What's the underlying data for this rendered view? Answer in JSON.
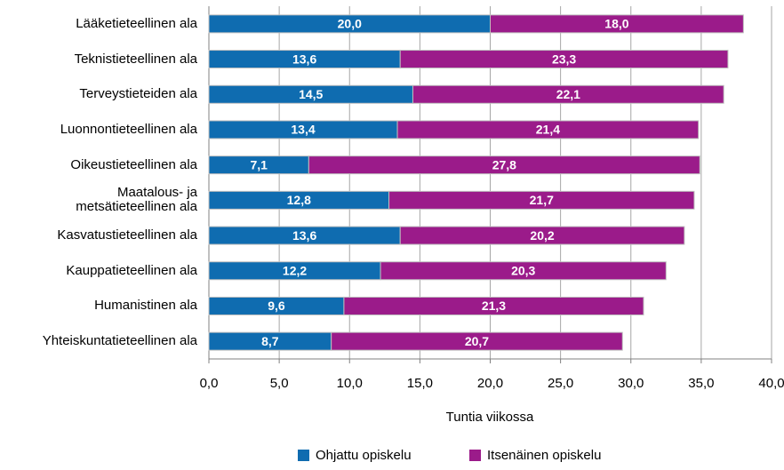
{
  "chart_data": {
    "type": "stacked_bar_horizontal",
    "categories": [
      "Lääketieteellinen ala",
      "Teknistieteellinen ala",
      "Terveystieteiden ala",
      "Luonnontieteellinen ala",
      "Oikeustieteellinen ala",
      "Maatalous- ja\nmetsätieteellinen ala",
      "Kasvatustieteellinen ala",
      "Kauppatieteellinen ala",
      "Humanistinen ala",
      "Yhteiskuntatieteellinen ala"
    ],
    "series": [
      {
        "name": "Ohjattu opiskelu",
        "color": "#0f6cb0",
        "values": [
          20.0,
          13.6,
          14.5,
          13.4,
          7.1,
          12.8,
          13.6,
          12.2,
          9.6,
          8.7
        ],
        "value_labels": [
          "20,0",
          "13,6",
          "14,5",
          "13,4",
          "7,1",
          "12,8",
          "13,6",
          "12,2",
          "9,6",
          "8,7"
        ]
      },
      {
        "name": "Itsenäinen opiskelu",
        "color": "#9b1b8a",
        "values": [
          18.0,
          23.3,
          22.1,
          21.4,
          27.8,
          21.7,
          20.2,
          20.3,
          21.3,
          20.7
        ],
        "value_labels": [
          "18,0",
          "23,3",
          "22,1",
          "21,4",
          "27,8",
          "21,7",
          "20,2",
          "20,3",
          "21,3",
          "20,7"
        ]
      }
    ],
    "xlabel": "Tuntia viikossa",
    "xlim": [
      0,
      40
    ],
    "xticks": [
      {
        "value": 0,
        "label": "0,0"
      },
      {
        "value": 5,
        "label": "5,0"
      },
      {
        "value": 10,
        "label": "10,0"
      },
      {
        "value": 15,
        "label": "15,0"
      },
      {
        "value": 20,
        "label": "20,0"
      },
      {
        "value": 25,
        "label": "25,0"
      },
      {
        "value": 30,
        "label": "30,0"
      },
      {
        "value": 35,
        "label": "35,0"
      },
      {
        "value": 40,
        "label": "40,0"
      }
    ],
    "grid": true,
    "legend": "bottom"
  }
}
